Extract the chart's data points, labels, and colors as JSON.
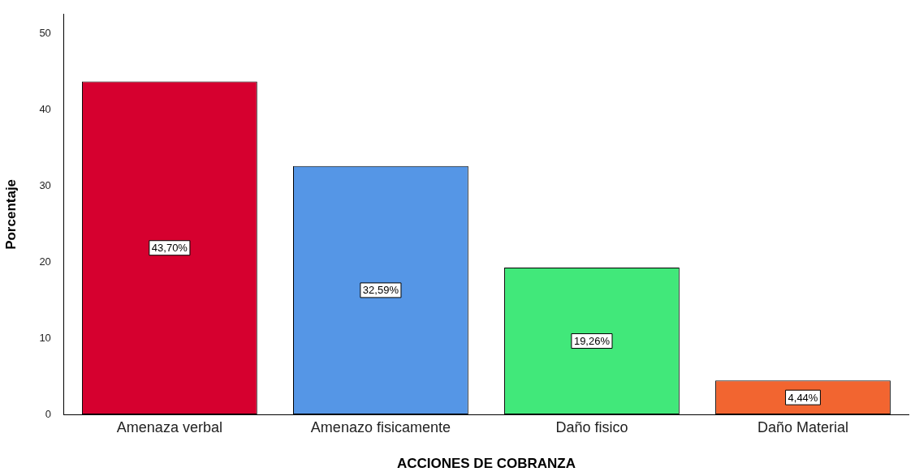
{
  "chart_data": {
    "type": "bar",
    "xlabel": "ACCIONES DE COBRANZA",
    "ylabel": "Porcentaje",
    "categories": [
      "Amenaza verbal",
      "Amenazo fisicamente",
      "Daño fisico",
      "Daño Material"
    ],
    "values": [
      43.7,
      32.59,
      19.26,
      4.44
    ],
    "colors": [
      "#d6002f",
      "#5596e6",
      "#41e87a",
      "#f26530"
    ],
    "value_labels": [
      "43,70%",
      "32,59%",
      "19,26%",
      "4,44%"
    ],
    "ylim": [
      0,
      52.5
    ],
    "yticks": [
      0,
      10,
      20,
      30,
      40,
      50
    ],
    "grid": false,
    "legend": false
  }
}
